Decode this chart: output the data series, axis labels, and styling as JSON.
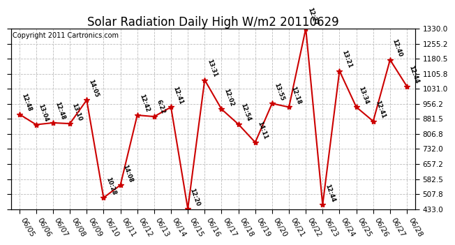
{
  "title": "Solar Radiation Daily High W/m2 20110629",
  "copyright": "Copyright 2011 Cartronics.com",
  "dates": [
    "06/05",
    "06/06",
    "06/07",
    "06/08",
    "06/09",
    "06/10",
    "06/11",
    "06/12",
    "06/13",
    "06/14",
    "06/15",
    "06/16",
    "06/17",
    "06/18",
    "06/19",
    "06/20",
    "06/21",
    "06/22",
    "06/23",
    "06/24",
    "06/25",
    "06/26",
    "06/27",
    "06/28"
  ],
  "values": [
    905,
    853,
    862,
    858,
    975,
    490,
    553,
    900,
    893,
    940,
    435,
    1075,
    930,
    855,
    765,
    958,
    940,
    1330,
    455,
    1120,
    940,
    870,
    1175,
    1043
  ],
  "times": [
    "12:48",
    "13:04",
    "12:48",
    "13:10",
    "14:05",
    "10:28",
    "14:08",
    "12:42",
    "6:22",
    "12:41",
    "12:20",
    "13:31",
    "12:02",
    "12:54",
    "14:11",
    "13:55",
    "12:18",
    "12:27",
    "12:44",
    "13:21",
    "13:34",
    "12:41",
    "12:40",
    "12:44"
  ],
  "ylim_min": 433.0,
  "ylim_max": 1330.0,
  "yticks": [
    433.0,
    507.8,
    582.5,
    657.2,
    732.0,
    806.8,
    881.5,
    956.2,
    1031.0,
    1105.8,
    1180.5,
    1255.2,
    1330.0
  ],
  "ytick_labels": [
    "433.0",
    "507.8",
    "582.5",
    "657.2",
    "732.0",
    "806.8",
    "881.5",
    "956.2",
    "1031.0",
    "1105.8",
    "1180.5",
    "1255.2",
    "1330.0"
  ],
  "line_color": "#cc0000",
  "marker_color": "#cc0000",
  "bg_color": "#ffffff",
  "grid_color": "#bbbbbb",
  "title_fontsize": 12,
  "label_fontsize": 7,
  "tick_fontsize": 7.5,
  "copyright_fontsize": 7
}
